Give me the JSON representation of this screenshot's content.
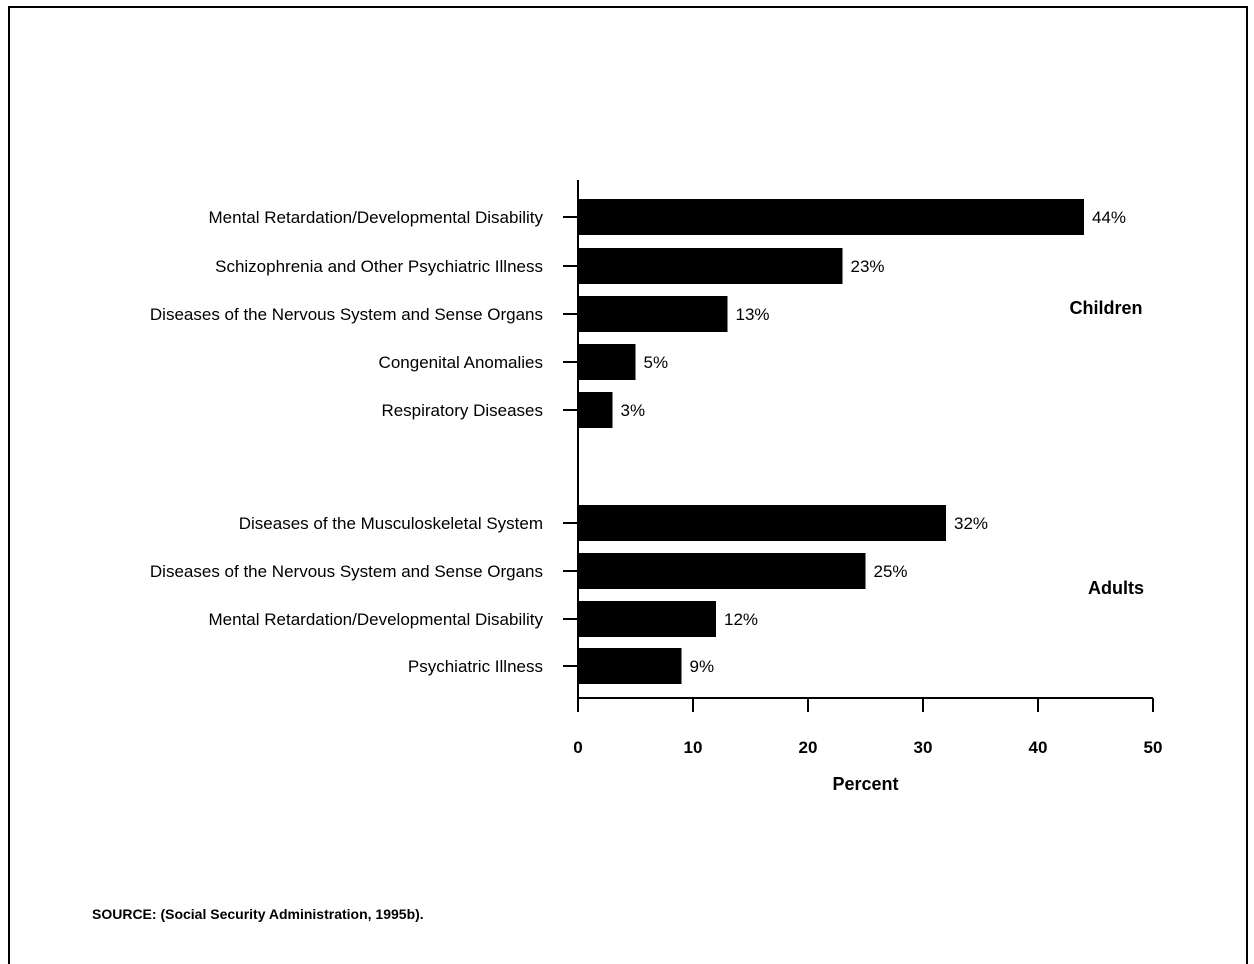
{
  "chart_data": {
    "type": "bar",
    "orientation": "horizontal",
    "xlabel": "Percent",
    "xlim": [
      0,
      50
    ],
    "xticks": [
      0,
      10,
      20,
      30,
      40,
      50
    ],
    "groups": [
      {
        "name": "Children",
        "categories": [
          "Mental Retardation/Developmental Disability",
          "Schizophrenia and Other Psychiatric Illness",
          "Diseases of the Nervous System and Sense Organs",
          "Congenital Anomalies",
          "Respiratory Diseases"
        ],
        "values": [
          44,
          23,
          13,
          5,
          3
        ],
        "value_labels": [
          "44%",
          "23%",
          "13%",
          "5%",
          "3%"
        ]
      },
      {
        "name": "Adults",
        "categories": [
          "Diseases of the Musculoskeletal System",
          "Diseases of the Nervous System and Sense Organs",
          "Mental Retardation/Developmental Disability",
          "Psychiatric Illness"
        ],
        "values": [
          32,
          25,
          12,
          9
        ],
        "value_labels": [
          "32%",
          "25%",
          "12%",
          "9%"
        ]
      }
    ],
    "bar_color": "#000000",
    "grid": false
  },
  "source_note": "SOURCE: (Social Security Administration, 1995b)."
}
